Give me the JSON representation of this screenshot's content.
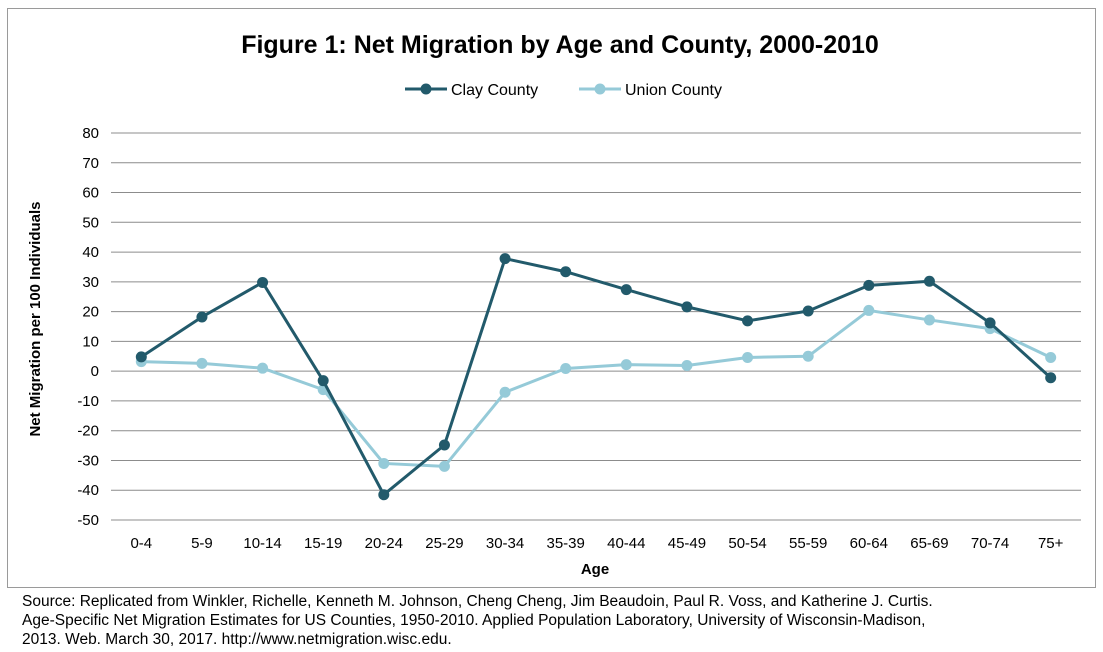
{
  "chart_data": {
    "type": "line",
    "title": "Figure 1: Net Migration by Age and County, 2000-2010",
    "xlabel": "Age",
    "ylabel": "Net Migration per 100 Individuals",
    "categories": [
      "0-4",
      "5-9",
      "10-14",
      "15-19",
      "20-24",
      "25-29",
      "30-34",
      "35-39",
      "40-44",
      "45-49",
      "50-54",
      "55-59",
      "60-64",
      "65-69",
      "70-74",
      "75+"
    ],
    "ylim": [
      -50,
      80
    ],
    "yticks": [
      80,
      70,
      60,
      50,
      40,
      30,
      20,
      10,
      0,
      -10,
      -20,
      -30,
      -40,
      -50
    ],
    "grid": "horizontal",
    "legend_position": "top",
    "series": [
      {
        "name": "Clay County",
        "color": "#225a6b",
        "values": [
          4.8,
          18.2,
          29.8,
          -3.2,
          -41.5,
          -24.8,
          37.8,
          33.4,
          27.4,
          21.6,
          16.9,
          20.2,
          28.8,
          30.2,
          16.2,
          -2.2
        ]
      },
      {
        "name": "Union County",
        "color": "#95cad8",
        "values": [
          3.2,
          2.6,
          1.0,
          -6.2,
          -31.0,
          -32.0,
          -7.1,
          0.9,
          2.2,
          1.9,
          4.6,
          5.0,
          20.4,
          17.2,
          14.3,
          4.6
        ]
      }
    ]
  },
  "source": {
    "line1": "Source: Replicated from Winkler, Richelle, Kenneth M. Johnson, Cheng Cheng, Jim Beaudoin, Paul R. Voss, and Katherine J. Curtis.",
    "line2": "Age-Specific Net Migration Estimates for US Counties, 1950-2010. Applied Population Laboratory, University of Wisconsin-Madison,",
    "line3": "2013. Web. March 30, 2017. http://www.netmigration.wisc.edu."
  }
}
